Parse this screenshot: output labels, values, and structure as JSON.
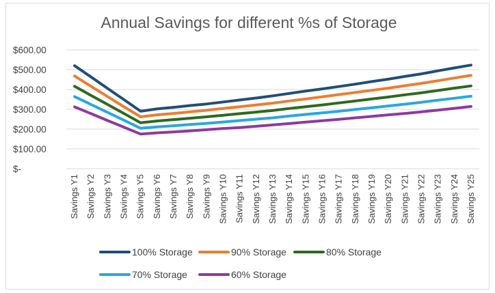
{
  "chart_data": {
    "type": "line",
    "title": "Annual Savings for different %s of Storage",
    "xlabel": "",
    "ylabel": "",
    "ylim": [
      0,
      600
    ],
    "yticks": [
      600,
      500,
      400,
      300,
      200,
      100,
      0
    ],
    "ytick_labels": [
      "$600.00",
      "$500.00",
      "$400.00",
      "$300.00",
      "$200.00",
      "$100.00",
      "$-"
    ],
    "grid": true,
    "legend_position": "bottom",
    "categories": [
      "Savings Y1",
      "Savings Y2",
      "Savings Y3",
      "Savings Y4",
      "Savings Y5",
      "Savings Y6",
      "Savings Y7",
      "Savings Y8",
      "Savings Y9",
      "Savings Y10",
      "Savings Y11",
      "Savings Y12",
      "Savings Y13",
      "Savings Y14",
      "Savings Y15",
      "Savings Y16",
      "Savings Y17",
      "Savings Y18",
      "Savings Y19",
      "Savings Y20",
      "Savings Y21",
      "Savings Y22",
      "Savings Y23",
      "Savings Y24",
      "Savings Y25"
    ],
    "series": [
      {
        "name": "100% Storage",
        "color": "#1f4e79",
        "values": [
          520,
          463,
          405,
          348,
          290,
          302,
          310,
          319,
          327,
          337,
          347,
          357,
          368,
          380,
          392,
          403,
          415,
          427,
          440,
          452,
          466,
          479,
          494,
          509,
          523
        ]
      },
      {
        "name": "90% Storage",
        "color": "#ed7d31",
        "values": [
          468,
          416,
          364,
          312,
          262,
          272,
          279,
          287,
          295,
          304,
          313,
          322,
          331,
          342,
          352,
          363,
          374,
          385,
          396,
          407,
          419,
          431,
          444,
          458,
          471
        ]
      },
      {
        "name": "80% Storage",
        "color": "#2d6a1e",
        "values": [
          416,
          370,
          324,
          278,
          232,
          241,
          248,
          255,
          262,
          270,
          278,
          286,
          294,
          304,
          313,
          322,
          332,
          342,
          352,
          362,
          373,
          383,
          395,
          407,
          418
        ]
      },
      {
        "name": "70% Storage",
        "color": "#29a7e1",
        "values": [
          364,
          324,
          284,
          244,
          204,
          211,
          217,
          223,
          229,
          236,
          243,
          250,
          257,
          266,
          274,
          282,
          290,
          299,
          308,
          317,
          326,
          335,
          346,
          356,
          366
        ]
      },
      {
        "name": "60% Storage",
        "color": "#8e3a9e",
        "values": [
          312,
          278,
          243,
          209,
          175,
          181,
          186,
          191,
          197,
          203,
          208,
          214,
          221,
          228,
          235,
          242,
          249,
          257,
          264,
          272,
          279,
          287,
          296,
          305,
          314
        ]
      }
    ]
  }
}
